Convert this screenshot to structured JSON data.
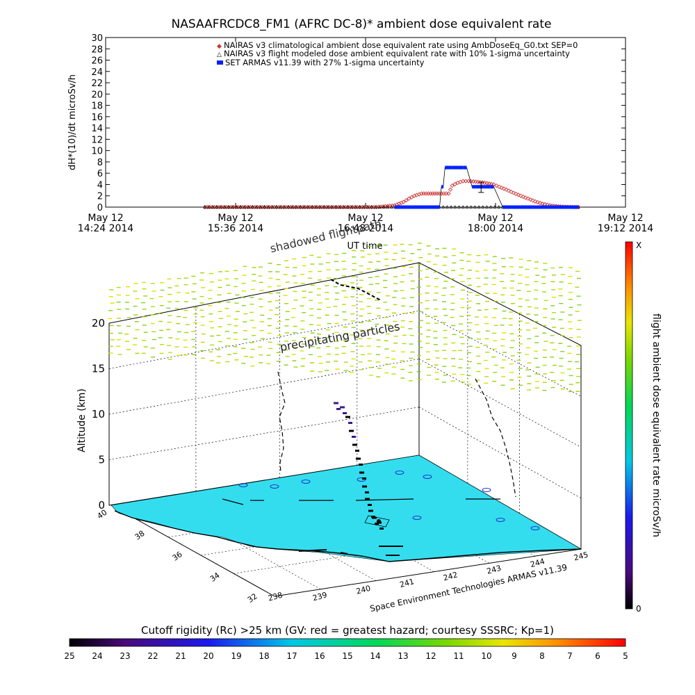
{
  "title": "NASAAFRCDC8_FM1 (AFRC DC-8)* ambient dose equivalent rate",
  "chart_data": [
    {
      "type": "line",
      "title": "NASAAFRCDC8_FM1 (AFRC DC-8)* ambient dose equivalent rate",
      "ylabel": "dH*(10)/dt microSv/h",
      "xlabel": "UT time",
      "ylim": [
        0,
        30
      ],
      "yticks": [
        "0",
        "2",
        "4",
        "6",
        "8",
        "10",
        "12",
        "14",
        "16",
        "18",
        "20",
        "22",
        "24",
        "26",
        "28",
        "30"
      ],
      "xlim_minutes": [
        0,
        288
      ],
      "xticks": [
        {
          "m": 0,
          "line1": "May 12",
          "line2": "14:24 2014"
        },
        {
          "m": 72,
          "line1": "May 12",
          "line2": "15:36 2014"
        },
        {
          "m": 144,
          "line1": "May 12",
          "line2": "16:48 2014"
        },
        {
          "m": 216,
          "line1": "May 12",
          "line2": "18:00 2014"
        },
        {
          "m": 288,
          "line1": "May 12",
          "line2": "19:12 2014"
        }
      ],
      "legend_position": "top-right",
      "series": [
        {
          "name": "NAIRAS v3 climatological ambient dose equivalent rate using AmbDoseEq_G0.txt SEP=0",
          "marker": "diamond",
          "color": "#cc3333",
          "x": [
            55,
            80,
            100,
            125,
            150,
            160,
            165,
            168,
            171,
            175,
            180,
            186,
            190,
            192,
            195,
            198,
            201,
            205,
            210,
            215,
            218,
            222,
            226,
            230,
            234,
            238,
            242,
            246,
            252,
            260,
            262
          ],
          "y": [
            0,
            0,
            0,
            0,
            0,
            0.3,
            0.9,
            1.5,
            2.0,
            2.4,
            2.4,
            2.4,
            2.4,
            3.8,
            4.3,
            4.6,
            4.6,
            4.5,
            4.3,
            4.0,
            3.6,
            3.1,
            2.5,
            2.0,
            1.5,
            1.0,
            0.6,
            0.3,
            0.1,
            0,
            0
          ]
        },
        {
          "name": "NAIRAS v3 flight modeled dose ambient equivalent rate with 10% 1-sigma uncertainty",
          "marker": "triangle",
          "color": "#000000",
          "x": [
            55,
            80,
            100,
            125,
            150,
            175,
            200,
            225,
            250,
            262
          ],
          "y": [
            0,
            0,
            0,
            0,
            0,
            0,
            0,
            0,
            0,
            0
          ]
        },
        {
          "name": "SET ARMAS v11.39 with 27% 1-sigma uncertainty",
          "marker": "square",
          "color": "#0022ff",
          "x": [
            160,
            170,
            180,
            185,
            186,
            187,
            188,
            190,
            192,
            195,
            198,
            200,
            203,
            205,
            208,
            210,
            213,
            215,
            220,
            225,
            232,
            245,
            262
          ],
          "y": [
            0,
            0,
            0,
            0,
            3.6,
            3.6,
            7.0,
            7.0,
            7.0,
            7.0,
            7.0,
            7.0,
            3.6,
            3.6,
            3.6,
            3.6,
            3.6,
            3.6,
            0,
            0,
            0,
            0,
            0
          ]
        }
      ],
      "error_bar": {
        "x": 208,
        "y": 3.5,
        "low": 2.6,
        "high": 4.4
      }
    },
    {
      "type": "scatter",
      "subtitle": "Space Environment Technologies ARMAS v11.39",
      "zlabel": "Altitude (km)",
      "zticks": [
        "0",
        "5",
        "10",
        "15",
        "20"
      ],
      "lat_ticks": [
        "40",
        "38",
        "36",
        "34",
        "32"
      ],
      "lon_ticks": [
        "239",
        "240",
        "241",
        "242",
        "243",
        "244",
        "245"
      ],
      "corner_label": "238",
      "annotations": [
        "shadowed flightpath",
        "precipitating particles",
        "flightpath"
      ],
      "ocean_color": "#33ddee",
      "land_color": "#ffffff",
      "right_colorbar": {
        "label": "flight ambient dose equivalent rate microSv/h",
        "max_label": "X",
        "min_label": "0"
      }
    }
  ],
  "bottom_colorbar": {
    "label": "Cutoff rigidity (Rc) >25 km (GV: red = greatest hazard; courtesy SSSRC; Kp=1)",
    "ticks": [
      "25",
      "24",
      "23",
      "22",
      "21",
      "20",
      "19",
      "18",
      "17",
      "16",
      "15",
      "14",
      "13",
      "12",
      "11",
      "10",
      "9",
      "8",
      "7",
      "6",
      "5"
    ]
  }
}
